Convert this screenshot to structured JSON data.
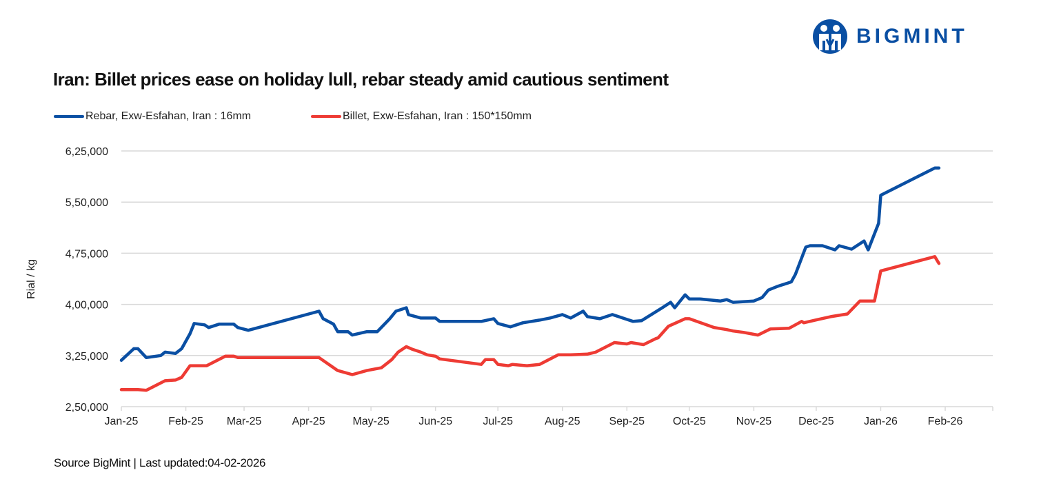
{
  "brand": {
    "name": "BIGMINT",
    "color": "#0a4fa3"
  },
  "title": "Iran: Billet prices ease on holiday lull, rebar steady amid cautious sentiment",
  "source": "Source BigMint | Last updated:04-02-2026",
  "chart_data": {
    "type": "line",
    "title": "Iran: Billet prices ease on holiday lull, rebar steady amid cautious sentiment",
    "xlabel": "",
    "ylabel": "Rial / kg",
    "ylim": [
      250000,
      625000
    ],
    "yticks": [
      250000,
      325000,
      400000,
      475000,
      550000,
      625000
    ],
    "ytick_labels": [
      "2,50,000",
      "3,25,000",
      "4,00,000",
      "4,75,000",
      "5,50,000",
      "6,25,000"
    ],
    "xlim": [
      "2025-01-01",
      "2026-03-10"
    ],
    "xticks": [
      "2025-01-01",
      "2025-02-01",
      "2025-03-01",
      "2025-04-01",
      "2025-05-01",
      "2025-06-01",
      "2025-07-01",
      "2025-08-01",
      "2025-09-01",
      "2025-10-01",
      "2025-11-01",
      "2025-12-01",
      "2026-01-01",
      "2026-02-01"
    ],
    "xtick_labels": [
      "Jan-25",
      "Feb-25",
      "Mar-25",
      "Apr-25",
      "May-25",
      "Jun-25",
      "Jul-25",
      "Aug-25",
      "Sep-25",
      "Oct-25",
      "Nov-25",
      "Dec-25",
      "Jan-26",
      "Feb-26"
    ],
    "grid": "horizontal",
    "legend": "top-left",
    "series": [
      {
        "name": "Rebar, Exw-Esfahan, Iran : 16mm",
        "color": "#0a4fa3",
        "points": [
          [
            "2025-01-01",
            318000
          ],
          [
            "2025-01-07",
            335000
          ],
          [
            "2025-01-09",
            335000
          ],
          [
            "2025-01-13",
            322000
          ],
          [
            "2025-01-20",
            325000
          ],
          [
            "2025-01-22",
            330000
          ],
          [
            "2025-01-27",
            328000
          ],
          [
            "2025-01-30",
            335000
          ],
          [
            "2025-02-03",
            357000
          ],
          [
            "2025-02-05",
            372000
          ],
          [
            "2025-02-10",
            370000
          ],
          [
            "2025-02-12",
            366000
          ],
          [
            "2025-02-17",
            371000
          ],
          [
            "2025-02-24",
            371000
          ],
          [
            "2025-02-26",
            366000
          ],
          [
            "2025-03-03",
            362000
          ],
          [
            "2025-04-06",
            390000
          ],
          [
            "2025-04-08",
            379000
          ],
          [
            "2025-04-13",
            371000
          ],
          [
            "2025-04-15",
            360000
          ],
          [
            "2025-04-20",
            360000
          ],
          [
            "2025-04-22",
            355000
          ],
          [
            "2025-04-29",
            360000
          ],
          [
            "2025-05-04",
            360000
          ],
          [
            "2025-05-10",
            379000
          ],
          [
            "2025-05-13",
            390000
          ],
          [
            "2025-05-18",
            395000
          ],
          [
            "2025-05-19",
            385000
          ],
          [
            "2025-05-25",
            380000
          ],
          [
            "2025-06-01",
            380000
          ],
          [
            "2025-06-03",
            375000
          ],
          [
            "2025-06-23",
            375000
          ],
          [
            "2025-06-29",
            379000
          ],
          [
            "2025-07-01",
            372000
          ],
          [
            "2025-07-07",
            367000
          ],
          [
            "2025-07-13",
            373000
          ],
          [
            "2025-07-21",
            377000
          ],
          [
            "2025-07-26",
            380000
          ],
          [
            "2025-08-01",
            385000
          ],
          [
            "2025-08-05",
            380000
          ],
          [
            "2025-08-11",
            390000
          ],
          [
            "2025-08-13",
            382000
          ],
          [
            "2025-08-19",
            379000
          ],
          [
            "2025-08-25",
            385000
          ],
          [
            "2025-09-01",
            378000
          ],
          [
            "2025-09-04",
            375000
          ],
          [
            "2025-09-08",
            376000
          ],
          [
            "2025-09-18",
            395000
          ],
          [
            "2025-09-22",
            403000
          ],
          [
            "2025-09-24",
            395000
          ],
          [
            "2025-09-29",
            414000
          ],
          [
            "2025-10-01",
            408000
          ],
          [
            "2025-10-06",
            408000
          ],
          [
            "2025-10-16",
            405000
          ],
          [
            "2025-10-19",
            407000
          ],
          [
            "2025-10-22",
            403000
          ],
          [
            "2025-11-01",
            405000
          ],
          [
            "2025-11-05",
            410000
          ],
          [
            "2025-11-08",
            421000
          ],
          [
            "2025-11-12",
            426000
          ],
          [
            "2025-11-14",
            428000
          ],
          [
            "2025-11-19",
            433000
          ],
          [
            "2025-11-21",
            444000
          ],
          [
            "2025-11-26",
            484000
          ],
          [
            "2025-11-28",
            486000
          ],
          [
            "2025-12-04",
            486000
          ],
          [
            "2025-12-10",
            480000
          ],
          [
            "2025-12-12",
            486000
          ],
          [
            "2025-12-18",
            481000
          ],
          [
            "2025-12-24",
            493000
          ],
          [
            "2025-12-26",
            480000
          ],
          [
            "2025-12-31",
            519000
          ],
          [
            "2026-01-01",
            560000
          ],
          [
            "2026-01-27",
            600000
          ],
          [
            "2026-01-29",
            600000
          ]
        ]
      },
      {
        "name": "Billet, Exw-Esfahan, Iran : 150*150mm",
        "color": "#ee3b34",
        "points": [
          [
            "2025-01-01",
            275000
          ],
          [
            "2025-01-09",
            275000
          ],
          [
            "2025-01-13",
            274000
          ],
          [
            "2025-01-22",
            288000
          ],
          [
            "2025-01-27",
            289000
          ],
          [
            "2025-01-30",
            293000
          ],
          [
            "2025-02-03",
            310000
          ],
          [
            "2025-02-11",
            310000
          ],
          [
            "2025-02-20",
            324000
          ],
          [
            "2025-02-24",
            324000
          ],
          [
            "2025-02-26",
            322000
          ],
          [
            "2025-04-06",
            322000
          ],
          [
            "2025-04-15",
            303000
          ],
          [
            "2025-04-22",
            297000
          ],
          [
            "2025-04-29",
            303000
          ],
          [
            "2025-05-06",
            307000
          ],
          [
            "2025-05-11",
            319000
          ],
          [
            "2025-05-14",
            330000
          ],
          [
            "2025-05-18",
            338000
          ],
          [
            "2025-05-21",
            334000
          ],
          [
            "2025-05-25",
            330000
          ],
          [
            "2025-05-28",
            326000
          ],
          [
            "2025-06-01",
            324000
          ],
          [
            "2025-06-03",
            320000
          ],
          [
            "2025-06-23",
            312000
          ],
          [
            "2025-06-25",
            319000
          ],
          [
            "2025-06-29",
            319000
          ],
          [
            "2025-07-01",
            312000
          ],
          [
            "2025-07-06",
            310000
          ],
          [
            "2025-07-08",
            312000
          ],
          [
            "2025-07-15",
            310000
          ],
          [
            "2025-07-21",
            312000
          ],
          [
            "2025-07-30",
            326000
          ],
          [
            "2025-08-05",
            326000
          ],
          [
            "2025-08-13",
            327000
          ],
          [
            "2025-08-17",
            330000
          ],
          [
            "2025-08-26",
            344000
          ],
          [
            "2025-09-01",
            342000
          ],
          [
            "2025-09-03",
            344000
          ],
          [
            "2025-09-09",
            341000
          ],
          [
            "2025-09-15",
            350000
          ],
          [
            "2025-09-16",
            351000
          ],
          [
            "2025-09-21",
            368000
          ],
          [
            "2025-09-29",
            379000
          ],
          [
            "2025-10-01",
            379000
          ],
          [
            "2025-10-13",
            366000
          ],
          [
            "2025-10-19",
            363000
          ],
          [
            "2025-10-22",
            361000
          ],
          [
            "2025-10-27",
            359000
          ],
          [
            "2025-11-03",
            355000
          ],
          [
            "2025-11-09",
            364000
          ],
          [
            "2025-11-18",
            365000
          ],
          [
            "2025-11-24",
            375000
          ],
          [
            "2025-11-25",
            373000
          ],
          [
            "2025-12-02",
            378000
          ],
          [
            "2025-12-08",
            382000
          ],
          [
            "2025-12-16",
            386000
          ],
          [
            "2025-12-22",
            405000
          ],
          [
            "2025-12-29",
            405000
          ],
          [
            "2026-01-01",
            449000
          ],
          [
            "2026-01-27",
            470000
          ],
          [
            "2026-01-29",
            460000
          ]
        ]
      }
    ]
  }
}
